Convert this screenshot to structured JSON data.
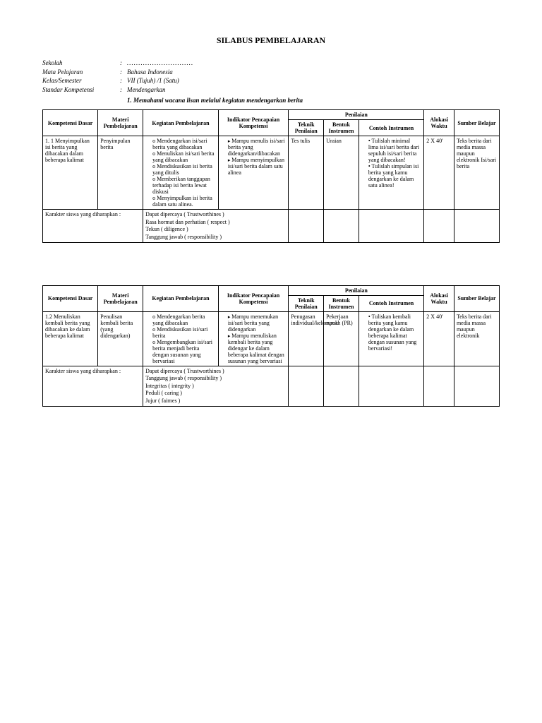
{
  "title": "SILABUS PEMBELAJARAN",
  "meta": {
    "sekolah_label": "Sekolah",
    "sekolah_value": ".............................",
    "mapel_label": "Mata Pelajaran",
    "mapel_value": "Bahasa Indonesia",
    "kelas_label": "Kelas/Semester",
    "kelas_value": "VII (Tujuh) /1 (Satu)",
    "standar_label": "Standar Kompetensi",
    "standar_value": "Mendengarkan",
    "standar_num": "1.",
    "standar_text": "Memahami wacana lisan melalui kegiatan mendengarkan berita"
  },
  "headers": {
    "kd": "Kompetensi Dasar",
    "materi": "Materi Pembelajaran",
    "kegiatan": "Kegiatan Pembelajaran",
    "indikator": "Indikator Pencapaian Kompetensi",
    "penilaian": "Penilaian",
    "teknik": "Teknik Penilaian",
    "bentuk": "Bentuk Instrumen",
    "contoh": "Contoh Instrumen",
    "alokasi": "Alokasi Waktu",
    "sumber": "Sumber Belajar"
  },
  "table1": {
    "row1": {
      "kd": "1. 1 Menyimpulkan isi berita yang dibacakan dalam beberapa kalimat",
      "materi": "Penyimpulan berita",
      "kegiatan": [
        "Mendengarkan isi/sari berita yang dibacakan",
        "Menuliskan isi/sari berita yang dibacakan",
        "Mendiskusikan isi berita yang ditulis",
        "Memberikan tanggapan terhadap isi berita lewat diskusi",
        "Menyimpulkan isi berita dalam satu alinea."
      ],
      "indikator": [
        "Mampu menulis isi/sari berita yang didengarkan/dibacakan",
        "Mampu menyimpulkan isi/sari berita dalam satu alinea"
      ],
      "teknik": "Tes tulis",
      "bentuk": "Uraian",
      "contoh": [
        "Tulislah minimal lima isi/sari berita dari sepuluh isi/sari berita yang dibacakan!",
        "Tulislah simpulan isi berita yang kamu dengarkan ke dalam satu alinea!"
      ],
      "alokasi": "2 X 40'",
      "sumber": "Teks berita dari media massa maupun elektronik Isi/sari berita"
    },
    "char_label": "Karakter siswa yang diharapkan :",
    "char_values": [
      "Dapat dipercaya ( Trustworthines )",
      "Rasa hormat dan perhatian ( respect )",
      "Tekun ( diligence )",
      "Tanggung jawab ( responsibility )"
    ]
  },
  "table2": {
    "row1": {
      "kd": "1.2 Menuliskan kembali berita yang dibacakan ke dalam beberapa kalimat",
      "materi": "Penulisan kembali berita (yang didengarkan)",
      "kegiatan": [
        "Mendengarkan berita yang dibacakan",
        "Mendiskusikan isi/sari berita",
        "Mengembangkan isi/sari berita menjadi berita dengan susunan yang bervariasi"
      ],
      "indikator": [
        "Mampu menemukan isi/sari berita yang didengarkan",
        "Mampu menuliskan kembali berita yang didengar ke dalam beberapa kalimat dengan susunan yang bervariasi"
      ],
      "teknik": "Penugasan individual/kelompok",
      "bentuk": "Pekerjaan rumah (PR)",
      "contoh": [
        "Tuliskan kembali berita yang kamu dengarkan ke dalam beberapa kalimat dengan susunan yang bervariasi!"
      ],
      "alokasi": "2 X 40'",
      "sumber": "Teks berita dari media massa maupun elektronik"
    },
    "char_label": "Karakter siswa yang diharapkan :",
    "char_values": [
      "Dapat dipercaya ( Trustworthines )",
      "Tanggung jawab ( responsibility )",
      "Integritas ( integrity )",
      "Peduli ( caring )",
      "Jujur ( fairnes )"
    ]
  }
}
